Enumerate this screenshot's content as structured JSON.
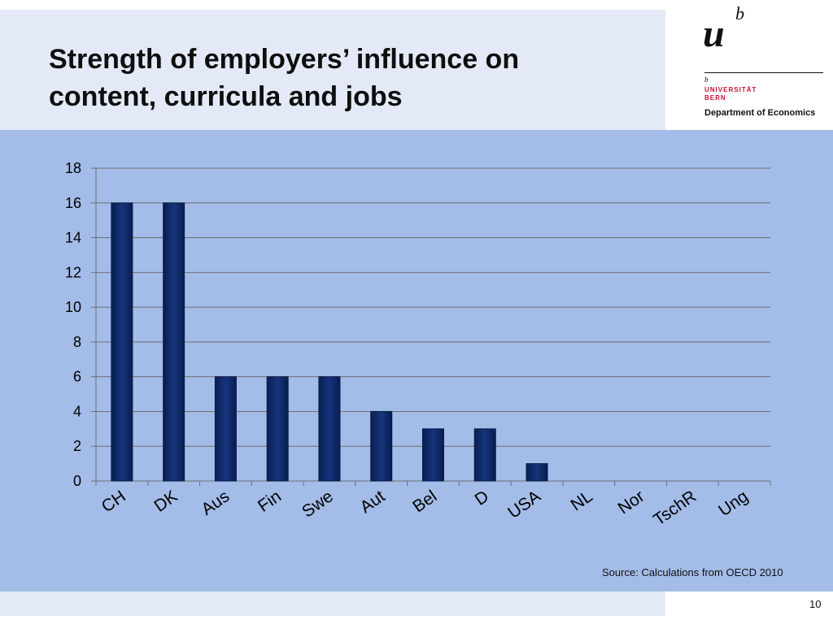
{
  "slide": {
    "title_line1": "Strength of employers’ influence on",
    "title_line2": "content, curricula and jobs",
    "source": "Source: Calculations from OECD 2010",
    "page_number": "10"
  },
  "logo": {
    "mark_u": "u",
    "mark_b": "b",
    "mark_b_small": "b",
    "university_line1": "UNIVERSITÄT",
    "university_line2": "BERN",
    "department": "Department of Economics"
  },
  "colors": {
    "header_band": "#e3e9f6",
    "panel": "#a3bce8",
    "bar": "#0f2a68",
    "bar_edge": "#081a45",
    "grid": "#6f6f6f",
    "brand_red": "#c8102e"
  },
  "chart_data": {
    "type": "bar",
    "categories": [
      "CH",
      "DK",
      "Aus",
      "Fin",
      "Swe",
      "Aut",
      "Bel",
      "D",
      "USA",
      "NL",
      "Nor",
      "TschR",
      "Ung"
    ],
    "values": [
      16,
      16,
      6,
      6,
      6,
      4,
      3,
      3,
      1,
      0,
      0,
      0,
      0
    ],
    "title": "Strength of employers’ influence on content, curricula and jobs",
    "xlabel": "",
    "ylabel": "",
    "ylim": [
      0,
      18
    ],
    "yticks": [
      0,
      2,
      4,
      6,
      8,
      10,
      12,
      14,
      16,
      18
    ],
    "grid": true,
    "legend": "none"
  }
}
